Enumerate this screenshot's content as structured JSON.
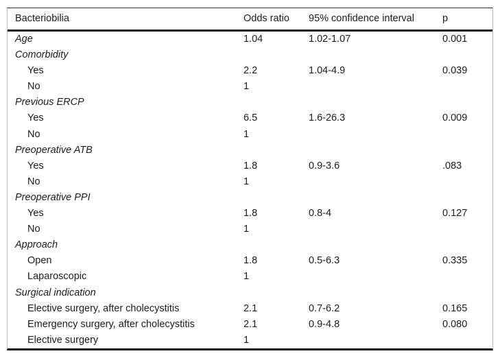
{
  "table": {
    "columns": [
      "Bacteriobilia",
      "Odds ratio",
      "95% confidence interval",
      "p"
    ],
    "rows": [
      {
        "label": "Age",
        "type": "category",
        "odds_ratio": "1.04",
        "ci": "1.02-1.07",
        "p": "0.001"
      },
      {
        "label": "Comorbidity",
        "type": "category",
        "odds_ratio": "",
        "ci": "",
        "p": ""
      },
      {
        "label": "Yes",
        "type": "sub",
        "odds_ratio": "2.2",
        "ci": "1.04-4.9",
        "p": "0.039"
      },
      {
        "label": "No",
        "type": "sub",
        "odds_ratio": "1",
        "ci": "",
        "p": ""
      },
      {
        "label": "Previous ERCP",
        "type": "category",
        "odds_ratio": "",
        "ci": "",
        "p": ""
      },
      {
        "label": "Yes",
        "type": "sub",
        "odds_ratio": "6.5",
        "ci": "1.6-26.3",
        "p": "0.009"
      },
      {
        "label": "No",
        "type": "sub",
        "odds_ratio": "1",
        "ci": "",
        "p": ""
      },
      {
        "label": "Preoperative ATB",
        "type": "category",
        "odds_ratio": "",
        "ci": "",
        "p": ""
      },
      {
        "label": "Yes",
        "type": "sub",
        "odds_ratio": "1.8",
        "ci": "0.9-3.6",
        "p": ".083"
      },
      {
        "label": "No",
        "type": "sub",
        "odds_ratio": "1",
        "ci": "",
        "p": ""
      },
      {
        "label": "Preoperative PPI",
        "type": "category",
        "odds_ratio": "",
        "ci": "",
        "p": ""
      },
      {
        "label": "Yes",
        "type": "sub",
        "odds_ratio": "1.8",
        "ci": "0.8-4",
        "p": "0.127"
      },
      {
        "label": "No",
        "type": "sub",
        "odds_ratio": "1",
        "ci": "",
        "p": ""
      },
      {
        "label": "Approach",
        "type": "category",
        "odds_ratio": "",
        "ci": "",
        "p": ""
      },
      {
        "label": "Open",
        "type": "sub",
        "odds_ratio": "1.8",
        "ci": "0.5-6.3",
        "p": "0.335"
      },
      {
        "label": "Laparoscopic",
        "type": "sub",
        "odds_ratio": "1",
        "ci": "",
        "p": ""
      },
      {
        "label": "Surgical indication",
        "type": "category",
        "odds_ratio": "",
        "ci": "",
        "p": ""
      },
      {
        "label": "Elective surgery, after cholecystitis",
        "type": "sub",
        "odds_ratio": "2.1",
        "ci": "0.7-6.2",
        "p": "0.165"
      },
      {
        "label": "Emergency surgery, after cholecystitis",
        "type": "sub",
        "odds_ratio": "2.1",
        "ci": "0.9-4.8",
        "p": "0.080"
      },
      {
        "label": "Elective surgery",
        "type": "sub",
        "odds_ratio": "1",
        "ci": "",
        "p": ""
      }
    ]
  }
}
